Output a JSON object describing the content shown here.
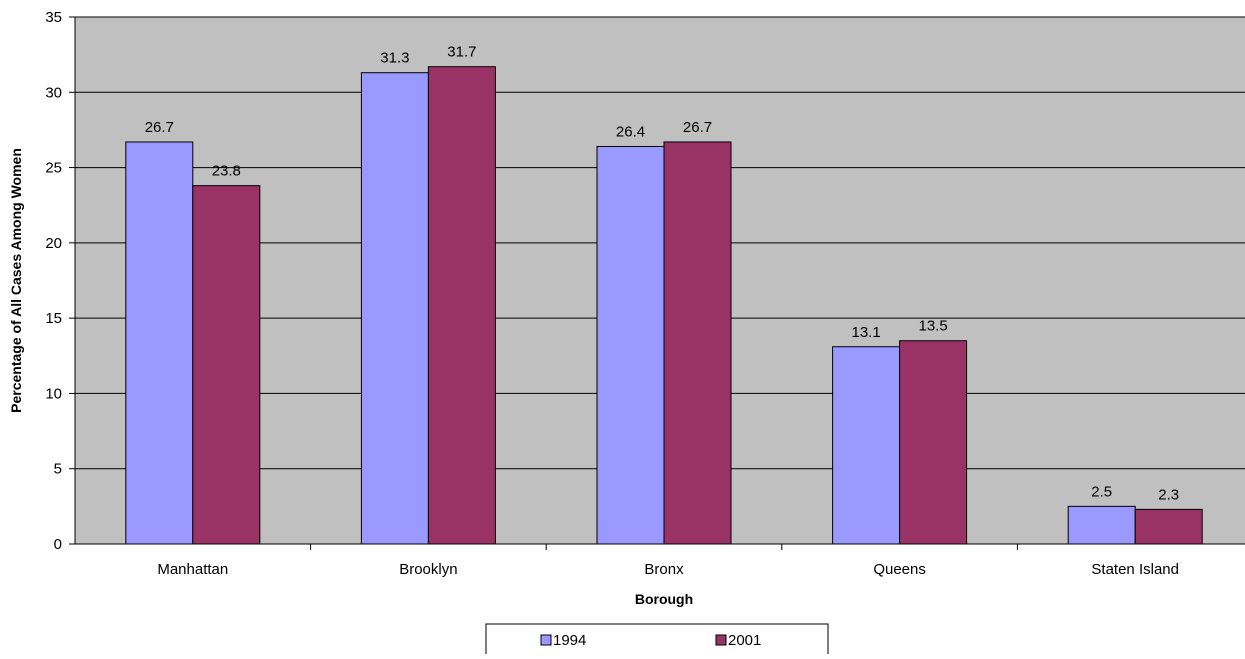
{
  "chart_data": {
    "type": "bar",
    "title": "",
    "xlabel": "Borough",
    "ylabel": "Percentage of All Cases Among Women",
    "categories": [
      "Manhattan",
      "Brooklyn",
      "Bronx",
      "Queens",
      "Staten Island"
    ],
    "series": [
      {
        "name": "1994",
        "values": [
          26.7,
          31.3,
          26.4,
          13.1,
          2.5
        ]
      },
      {
        "name": "2001",
        "values": [
          23.8,
          31.7,
          26.7,
          13.5,
          2.3
        ]
      }
    ],
    "ylim": [
      0,
      35
    ],
    "yticks": [
      0,
      5,
      10,
      15,
      20,
      25,
      30,
      35
    ],
    "grid": true,
    "legend_position": "bottom",
    "colors": {
      "plot_background": "#C0C0C0",
      "series_1994": "#9999FF",
      "series_2001": "#993366",
      "gridline": "#000000"
    }
  }
}
